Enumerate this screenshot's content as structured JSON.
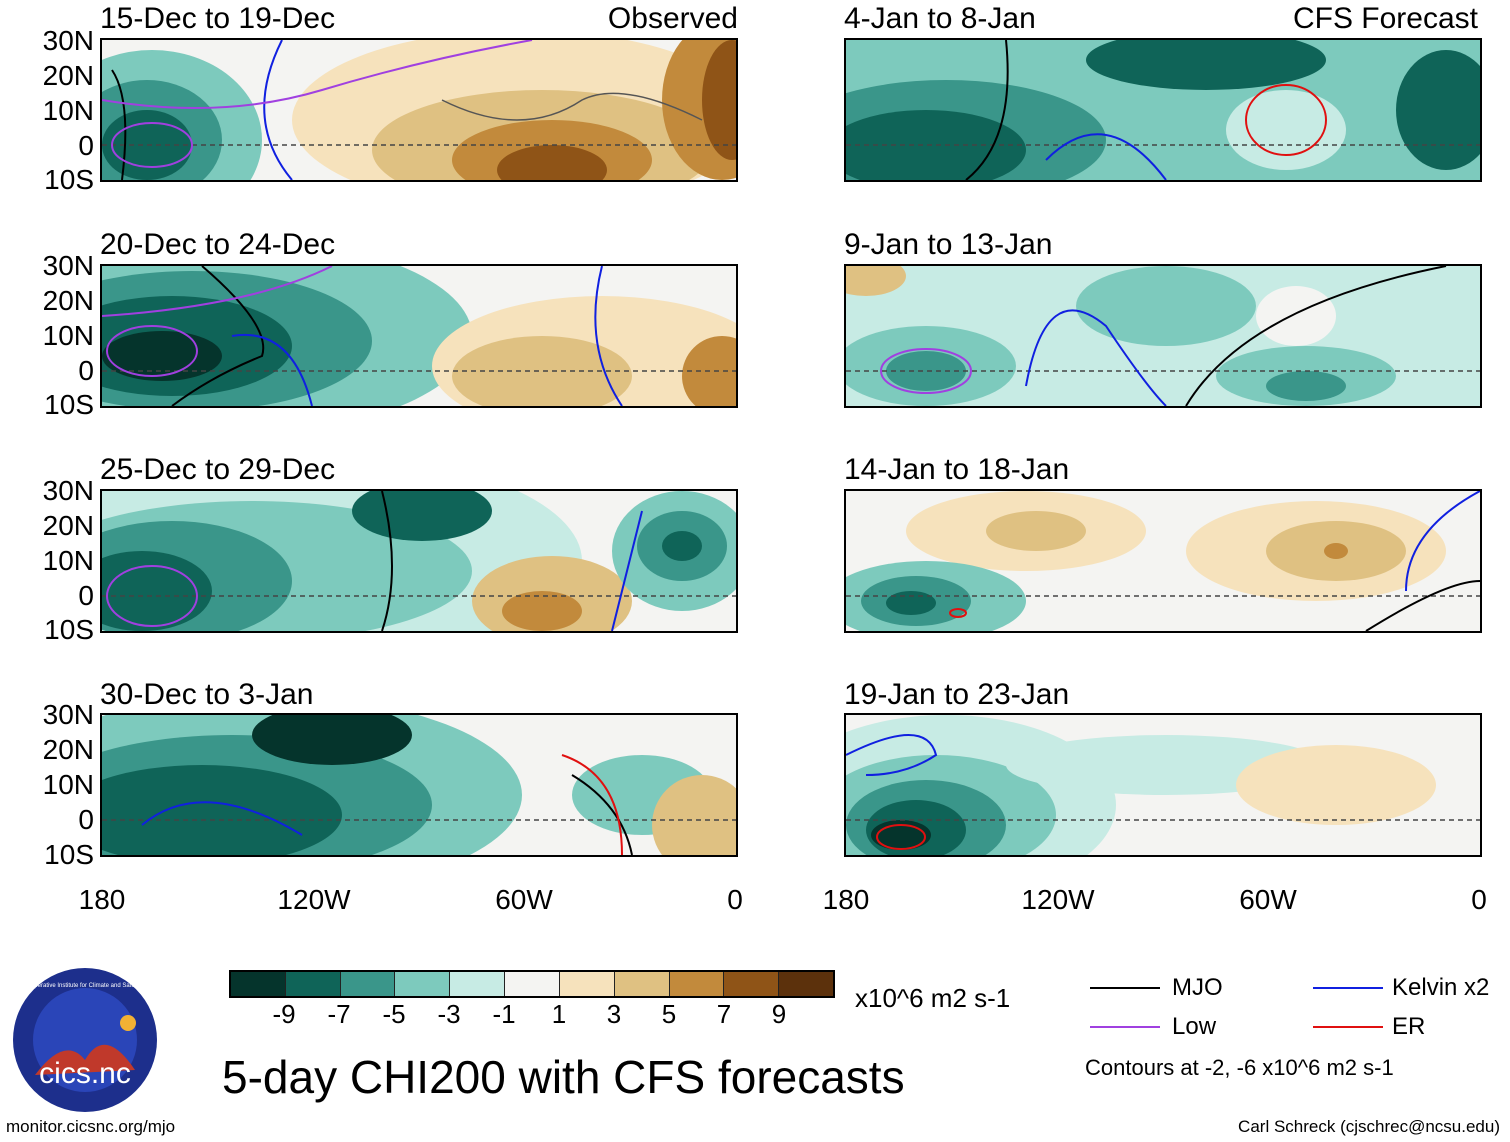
{
  "panels_left": [
    {
      "title": "15-Dec to 19-Dec",
      "tag": "Observed"
    },
    {
      "title": "20-Dec to 24-Dec",
      "tag": ""
    },
    {
      "title": "25-Dec to 29-Dec",
      "tag": ""
    },
    {
      "title": "30-Dec to 3-Jan",
      "tag": ""
    }
  ],
  "panels_right": [
    {
      "title": "4-Jan to 8-Jan",
      "tag": "CFS Forecast"
    },
    {
      "title": "9-Jan to 13-Jan",
      "tag": ""
    },
    {
      "title": "14-Jan to 18-Jan",
      "tag": ""
    },
    {
      "title": "19-Jan to 23-Jan",
      "tag": ""
    }
  ],
  "lat_labels": [
    "30N",
    "20N",
    "10N",
    "0",
    "10S"
  ],
  "lon_labels": [
    "180",
    "120W",
    "60W",
    "0"
  ],
  "colorbar": {
    "ticks": [
      "-9",
      "-7",
      "-5",
      "-3",
      "-1",
      "1",
      "3",
      "5",
      "7",
      "9"
    ],
    "colors": [
      "#05342c",
      "#0f6458",
      "#3a968a",
      "#7dcabd",
      "#c7ebe4",
      "#f4f4f2",
      "#f6e2bc",
      "#dfc182",
      "#c28a3c",
      "#8f5417",
      "#5c310c"
    ],
    "units": "x10^6 m2 s-1"
  },
  "legend": {
    "mjo": {
      "label": "MJO",
      "color": "#000000"
    },
    "kelvin": {
      "label": "Kelvin x2",
      "color": "#1020e0"
    },
    "low": {
      "label": "Low",
      "color": "#a040e0"
    },
    "er": {
      "label": "ER",
      "color": "#e01010"
    },
    "contours_note": "Contours at -2, -6 x10^6 m2 s-1"
  },
  "main_title": "5-day CHI200 with CFS forecasts",
  "logo_text": "cics.nc",
  "logo_ring_text": "Cooperative Institute for Climate and Satellites",
  "footer_left": "monitor.cicsnc.org/mjo",
  "footer_right": "Carl Schreck (cjschrec@ncsu.edu)"
}
